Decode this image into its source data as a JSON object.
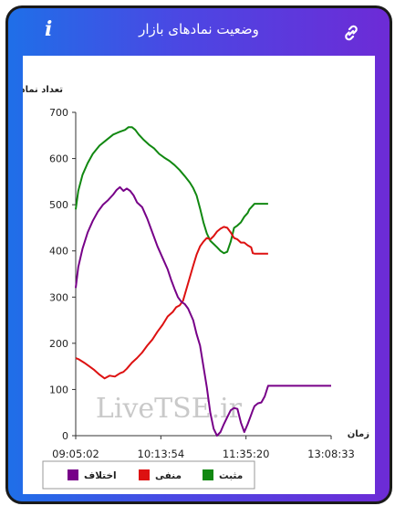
{
  "header": {
    "title": "وضعیت نمادهای بازار",
    "info_glyph": "i",
    "info_icon": "info-icon",
    "link_icon": "link-icon"
  },
  "chart_data": {
    "type": "line",
    "ylabel": "تعداد نماد",
    "xlabel": "زمان",
    "ylim": [
      0,
      700
    ],
    "yticks": [
      "0",
      "100",
      "200",
      "300",
      "400",
      "500",
      "600",
      "700"
    ],
    "xticks": [
      "09:05:02",
      "10:13:54",
      "11:35:20",
      "13:08:33"
    ],
    "watermark": "LiveTSE.ir",
    "series": [
      {
        "name": "مثبت",
        "color": "#118811",
        "values": [
          [
            0,
            490
          ],
          [
            3,
            530
          ],
          [
            8,
            565
          ],
          [
            14,
            590
          ],
          [
            20,
            610
          ],
          [
            28,
            628
          ],
          [
            36,
            640
          ],
          [
            44,
            652
          ],
          [
            52,
            658
          ],
          [
            58,
            662
          ],
          [
            62,
            668
          ],
          [
            66,
            668
          ],
          [
            70,
            662
          ],
          [
            74,
            652
          ],
          [
            80,
            640
          ],
          [
            86,
            630
          ],
          [
            92,
            622
          ],
          [
            98,
            610
          ],
          [
            104,
            602
          ],
          [
            110,
            595
          ],
          [
            116,
            586
          ],
          [
            122,
            575
          ],
          [
            128,
            562
          ],
          [
            134,
            548
          ],
          [
            138,
            536
          ],
          [
            142,
            520
          ],
          [
            146,
            492
          ],
          [
            150,
            462
          ],
          [
            154,
            438
          ],
          [
            158,
            422
          ],
          [
            162,
            415
          ],
          [
            166,
            408
          ],
          [
            170,
            400
          ],
          [
            174,
            395
          ],
          [
            178,
            398
          ],
          [
            182,
            420
          ],
          [
            186,
            450
          ],
          [
            190,
            455
          ],
          [
            194,
            462
          ],
          [
            198,
            474
          ],
          [
            202,
            482
          ],
          [
            204,
            490
          ],
          [
            208,
            498
          ],
          [
            210,
            502
          ],
          [
            226,
            502
          ]
        ]
      },
      {
        "name": "منفی",
        "color": "#dd1111",
        "values": [
          [
            0,
            168
          ],
          [
            4,
            165
          ],
          [
            10,
            158
          ],
          [
            16,
            150
          ],
          [
            22,
            142
          ],
          [
            28,
            132
          ],
          [
            34,
            124
          ],
          [
            40,
            130
          ],
          [
            46,
            128
          ],
          [
            52,
            135
          ],
          [
            56,
            138
          ],
          [
            60,
            145
          ],
          [
            66,
            158
          ],
          [
            72,
            168
          ],
          [
            78,
            180
          ],
          [
            84,
            195
          ],
          [
            90,
            208
          ],
          [
            96,
            225
          ],
          [
            102,
            240
          ],
          [
            108,
            258
          ],
          [
            114,
            268
          ],
          [
            118,
            278
          ],
          [
            122,
            282
          ],
          [
            126,
            292
          ],
          [
            132,
            330
          ],
          [
            138,
            368
          ],
          [
            142,
            392
          ],
          [
            146,
            410
          ],
          [
            150,
            420
          ],
          [
            154,
            428
          ],
          [
            158,
            425
          ],
          [
            162,
            432
          ],
          [
            166,
            442
          ],
          [
            170,
            448
          ],
          [
            174,
            452
          ],
          [
            178,
            450
          ],
          [
            182,
            440
          ],
          [
            186,
            428
          ],
          [
            190,
            425
          ],
          [
            194,
            418
          ],
          [
            198,
            418
          ],
          [
            202,
            412
          ],
          [
            206,
            408
          ],
          [
            208,
            395
          ],
          [
            210,
            394
          ],
          [
            226,
            394
          ]
        ]
      },
      {
        "name": "اختلاف",
        "color": "#770088",
        "values": [
          [
            0,
            320
          ],
          [
            3,
            365
          ],
          [
            8,
            405
          ],
          [
            14,
            440
          ],
          [
            20,
            465
          ],
          [
            26,
            485
          ],
          [
            32,
            500
          ],
          [
            38,
            510
          ],
          [
            44,
            522
          ],
          [
            48,
            532
          ],
          [
            52,
            538
          ],
          [
            56,
            530
          ],
          [
            60,
            535
          ],
          [
            64,
            530
          ],
          [
            68,
            520
          ],
          [
            72,
            505
          ],
          [
            78,
            495
          ],
          [
            84,
            470
          ],
          [
            90,
            440
          ],
          [
            96,
            410
          ],
          [
            102,
            385
          ],
          [
            108,
            360
          ],
          [
            112,
            338
          ],
          [
            116,
            318
          ],
          [
            120,
            300
          ],
          [
            124,
            290
          ],
          [
            128,
            285
          ],
          [
            132,
            275
          ],
          [
            138,
            250
          ],
          [
            142,
            220
          ],
          [
            146,
            195
          ],
          [
            150,
            150
          ],
          [
            154,
            105
          ],
          [
            158,
            50
          ],
          [
            162,
            15
          ],
          [
            166,
            0
          ],
          [
            170,
            8
          ],
          [
            174,
            25
          ],
          [
            178,
            40
          ],
          [
            182,
            55
          ],
          [
            186,
            60
          ],
          [
            190,
            58
          ],
          [
            194,
            28
          ],
          [
            198,
            8
          ],
          [
            202,
            25
          ],
          [
            206,
            45
          ],
          [
            208,
            55
          ],
          [
            210,
            64
          ],
          [
            214,
            70
          ],
          [
            218,
            72
          ],
          [
            222,
            85
          ],
          [
            226,
            108
          ],
          [
            300,
            108
          ]
        ]
      }
    ],
    "legend_position": "bottom"
  }
}
